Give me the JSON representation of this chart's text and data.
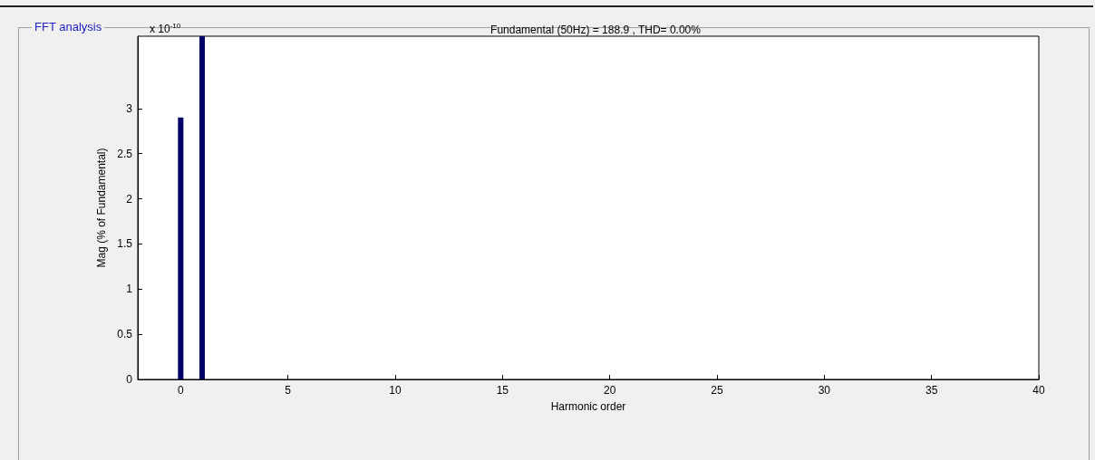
{
  "chart_data": {
    "type": "bar",
    "title": "Fundamental (50Hz) = 188.9 , THD= 0.00%",
    "xlabel": "Harmonic order",
    "ylabel": "Mag (% of Fundamental)",
    "annotations": [
      "FFT analysis",
      "x 10$^{-10}$"
    ],
    "x": [
      0,
      1
    ],
    "values": [
      2.9,
      3.8
    ],
    "color": "#000066",
    "xlim": [
      -2,
      40
    ],
    "xticks": [
      0,
      5,
      10,
      15,
      20,
      25,
      30,
      35,
      40
    ],
    "ylim": [
      0,
      3.8
    ],
    "yticks": [
      0,
      0.5,
      1,
      1.5,
      2,
      2.5,
      3
    ],
    "grid": false
  }
}
